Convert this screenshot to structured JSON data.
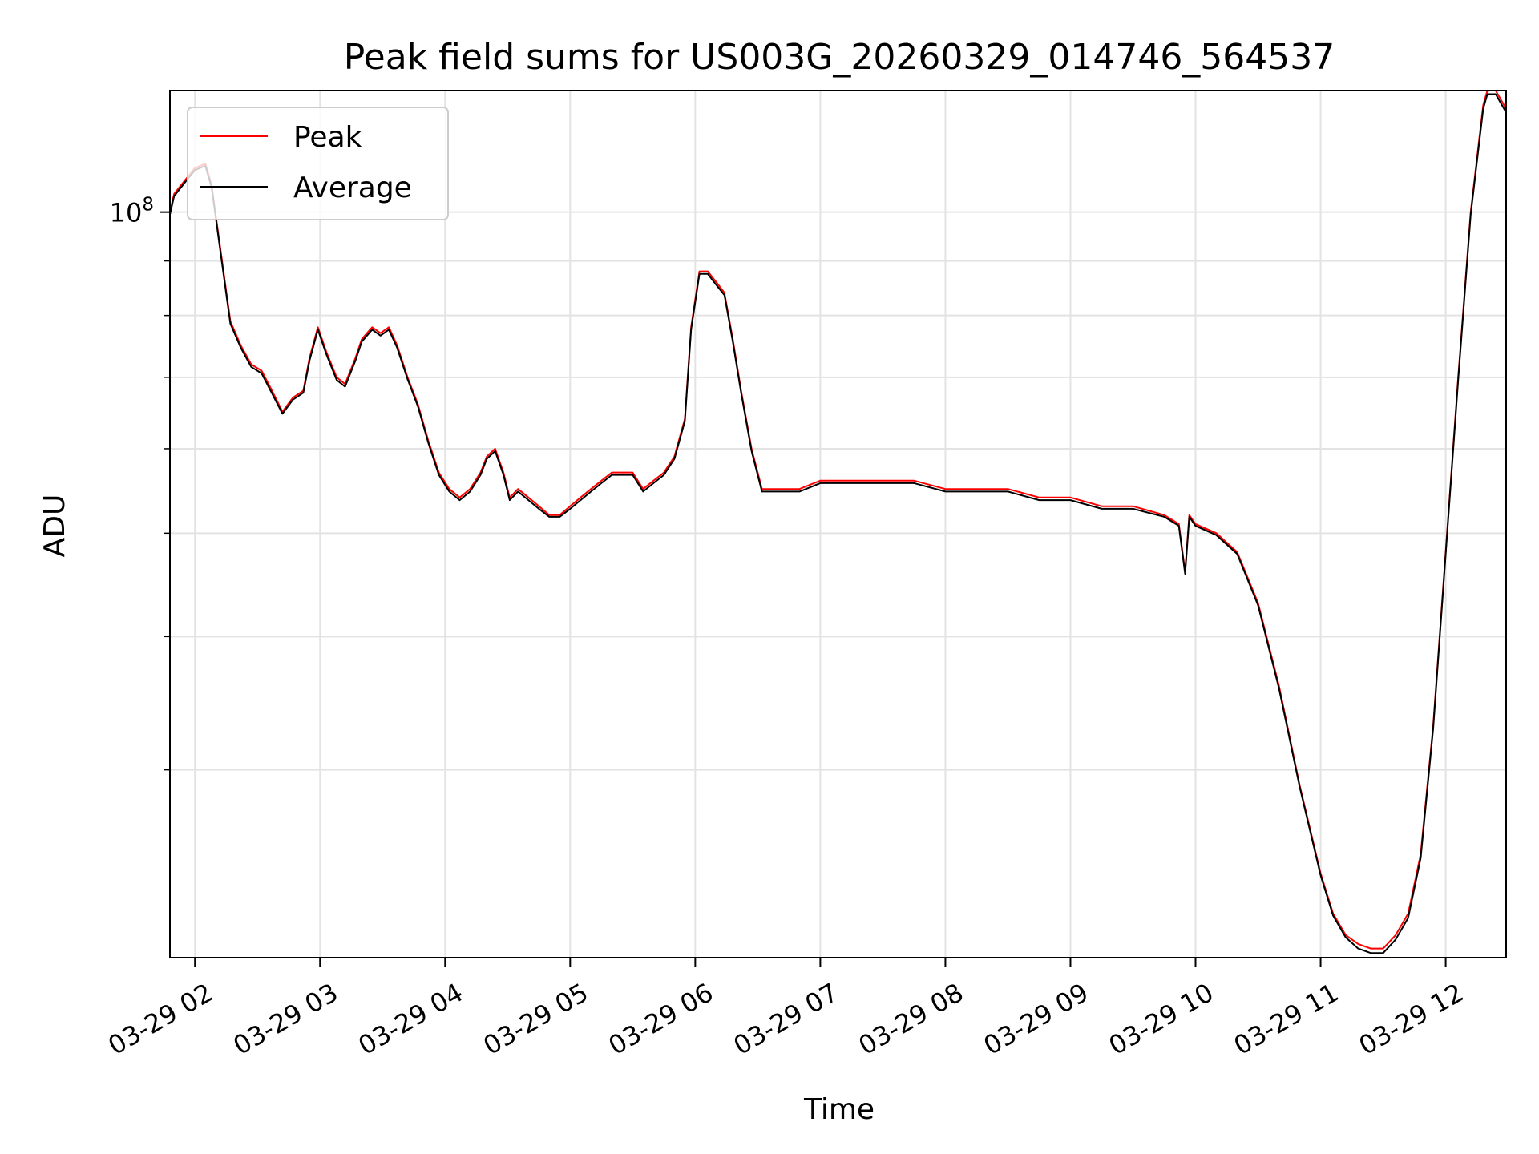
{
  "chart_data": {
    "type": "line",
    "title": "Peak field sums for US003G_20260329_014746_564537",
    "xlabel": "Time",
    "ylabel": "ADU",
    "yscale": "log",
    "ylim": [
      20000000,
      130000000
    ],
    "xlim": [
      "03-29 01:48",
      "03-29 12:29"
    ],
    "grid": true,
    "legend_position": "top-left",
    "x_ticks": [
      "03-29 02",
      "03-29 03",
      "03-29 04",
      "03-29 05",
      "03-29 06",
      "03-29 07",
      "03-29 08",
      "03-29 09",
      "03-29 10",
      "03-29 11",
      "03-29 12"
    ],
    "y_ticks": [
      {
        "value": 100000000,
        "label": "10",
        "exponent": "8"
      }
    ],
    "y_minor_ticks": [
      30000000,
      40000000,
      50000000,
      60000000,
      70000000,
      80000000,
      90000000
    ],
    "series": [
      {
        "name": "Peak",
        "color": "#ff0000",
        "x": [
          "03-29 01:48",
          "03-29 01:50",
          "03-29 01:55",
          "03-29 02:00",
          "03-29 02:05",
          "03-29 02:08",
          "03-29 02:12",
          "03-29 02:17",
          "03-29 02:22",
          "03-29 02:27",
          "03-29 02:32",
          "03-29 02:37",
          "03-29 02:42",
          "03-29 02:47",
          "03-29 02:52",
          "03-29 02:55",
          "03-29 02:59",
          "03-29 03:03",
          "03-29 03:08",
          "03-29 03:12",
          "03-29 03:17",
          "03-29 03:20",
          "03-29 03:25",
          "03-29 03:29",
          "03-29 03:33",
          "03-29 03:37",
          "03-29 03:42",
          "03-29 03:47",
          "03-29 03:52",
          "03-29 03:57",
          "03-29 04:02",
          "03-29 04:07",
          "03-29 04:12",
          "03-29 04:17",
          "03-29 04:20",
          "03-29 04:24",
          "03-29 04:28",
          "03-29 04:31",
          "03-29 04:35",
          "03-29 04:40",
          "03-29 04:45",
          "03-29 04:50",
          "03-29 04:55",
          "03-29 05:00",
          "03-29 05:05",
          "03-29 05:10",
          "03-29 05:15",
          "03-29 05:20",
          "03-29 05:25",
          "03-29 05:30",
          "03-29 05:35",
          "03-29 05:40",
          "03-29 05:45",
          "03-29 05:50",
          "03-29 05:55",
          "03-29 05:58",
          "03-29 06:02",
          "03-29 06:06",
          "03-29 06:10",
          "03-29 06:14",
          "03-29 06:18",
          "03-29 06:22",
          "03-29 06:27",
          "03-29 06:32",
          "03-29 06:40",
          "03-29 06:50",
          "03-29 07:00",
          "03-29 07:15",
          "03-29 07:30",
          "03-29 07:45",
          "03-29 08:00",
          "03-29 08:15",
          "03-29 08:30",
          "03-29 08:45",
          "03-29 09:00",
          "03-29 09:15",
          "03-29 09:30",
          "03-29 09:45",
          "03-29 09:52",
          "03-29 09:55",
          "03-29 09:57",
          "03-29 10:00",
          "03-29 10:10",
          "03-29 10:20",
          "03-29 10:30",
          "03-29 10:40",
          "03-29 10:50",
          "03-29 11:00",
          "03-29 11:06",
          "03-29 11:12",
          "03-29 11:18",
          "03-29 11:24",
          "03-29 11:30",
          "03-29 11:36",
          "03-29 11:42",
          "03-29 11:48",
          "03-29 11:54",
          "03-29 12:00",
          "03-29 12:06",
          "03-29 12:12",
          "03-29 12:18",
          "03-29 12:20",
          "03-29 12:24",
          "03-29 12:29"
        ],
        "values": [
          100000000,
          104000000,
          107000000,
          110000000,
          111000000,
          106000000,
          93000000,
          79000000,
          75000000,
          72000000,
          71000000,
          68000000,
          65000000,
          67000000,
          68000000,
          73000000,
          78000000,
          74000000,
          70000000,
          69000000,
          73000000,
          76000000,
          78000000,
          77000000,
          78000000,
          75000000,
          70000000,
          66000000,
          61000000,
          57000000,
          55000000,
          54000000,
          55000000,
          57000000,
          59000000,
          60000000,
          57000000,
          54000000,
          55000000,
          54000000,
          53000000,
          52000000,
          52000000,
          53000000,
          54000000,
          55000000,
          56000000,
          57000000,
          57000000,
          57000000,
          55000000,
          56000000,
          57000000,
          59000000,
          64000000,
          78000000,
          88000000,
          88000000,
          86000000,
          84000000,
          76000000,
          68000000,
          60000000,
          55000000,
          55000000,
          55000000,
          56000000,
          56000000,
          56000000,
          56000000,
          55000000,
          55000000,
          55000000,
          54000000,
          54000000,
          53000000,
          53000000,
          52000000,
          51000000,
          46000000,
          52000000,
          51000000,
          50000000,
          48000000,
          43000000,
          36000000,
          29000000,
          24000000,
          22000000,
          21000000,
          20600000,
          20400000,
          20400000,
          21000000,
          22000000,
          25000000,
          33000000,
          48000000,
          70000000,
          100000000,
          126000000,
          130000000,
          130000000,
          125000000
        ]
      },
      {
        "name": "Average",
        "color": "#000000",
        "x": [
          "03-29 01:48",
          "03-29 01:50",
          "03-29 01:55",
          "03-29 02:00",
          "03-29 02:05",
          "03-29 02:08",
          "03-29 02:12",
          "03-29 02:17",
          "03-29 02:22",
          "03-29 02:27",
          "03-29 02:32",
          "03-29 02:37",
          "03-29 02:42",
          "03-29 02:47",
          "03-29 02:52",
          "03-29 02:55",
          "03-29 02:59",
          "03-29 03:03",
          "03-29 03:08",
          "03-29 03:12",
          "03-29 03:17",
          "03-29 03:20",
          "03-29 03:25",
          "03-29 03:29",
          "03-29 03:33",
          "03-29 03:37",
          "03-29 03:42",
          "03-29 03:47",
          "03-29 03:52",
          "03-29 03:57",
          "03-29 04:02",
          "03-29 04:07",
          "03-29 04:12",
          "03-29 04:17",
          "03-29 04:20",
          "03-29 04:24",
          "03-29 04:28",
          "03-29 04:31",
          "03-29 04:35",
          "03-29 04:40",
          "03-29 04:45",
          "03-29 04:50",
          "03-29 04:55",
          "03-29 05:00",
          "03-29 05:05",
          "03-29 05:10",
          "03-29 05:15",
          "03-29 05:20",
          "03-29 05:25",
          "03-29 05:30",
          "03-29 05:35",
          "03-29 05:40",
          "03-29 05:45",
          "03-29 05:50",
          "03-29 05:55",
          "03-29 05:58",
          "03-29 06:02",
          "03-29 06:06",
          "03-29 06:10",
          "03-29 06:14",
          "03-29 06:18",
          "03-29 06:22",
          "03-29 06:27",
          "03-29 06:32",
          "03-29 06:40",
          "03-29 06:50",
          "03-29 07:00",
          "03-29 07:15",
          "03-29 07:30",
          "03-29 07:45",
          "03-29 08:00",
          "03-29 08:15",
          "03-29 08:30",
          "03-29 08:45",
          "03-29 09:00",
          "03-29 09:15",
          "03-29 09:30",
          "03-29 09:45",
          "03-29 09:52",
          "03-29 09:55",
          "03-29 09:57",
          "03-29 10:00",
          "03-29 10:10",
          "03-29 10:20",
          "03-29 10:30",
          "03-29 10:40",
          "03-29 10:50",
          "03-29 11:00",
          "03-29 11:06",
          "03-29 11:12",
          "03-29 11:18",
          "03-29 11:24",
          "03-29 11:30",
          "03-29 11:36",
          "03-29 11:42",
          "03-29 11:48",
          "03-29 11:54",
          "03-29 12:00",
          "03-29 12:06",
          "03-29 12:12",
          "03-29 12:18",
          "03-29 12:20",
          "03-29 12:24",
          "03-29 12:29"
        ],
        "values": [
          99500000,
          103500000,
          106500000,
          109500000,
          110500000,
          105500000,
          92500000,
          78600000,
          74600000,
          71600000,
          70600000,
          67600000,
          64700000,
          66700000,
          67700000,
          72600000,
          77600000,
          73600000,
          69600000,
          68600000,
          72600000,
          75600000,
          77600000,
          76600000,
          77600000,
          74600000,
          69700000,
          65700000,
          60700000,
          56700000,
          54700000,
          53700000,
          54700000,
          56700000,
          58700000,
          59700000,
          56700000,
          53700000,
          54700000,
          53700000,
          52700000,
          51800000,
          51800000,
          52700000,
          53700000,
          54700000,
          55700000,
          56700000,
          56700000,
          56700000,
          54700000,
          55700000,
          56700000,
          58700000,
          63700000,
          77600000,
          87500000,
          87500000,
          85500000,
          83600000,
          75600000,
          67700000,
          59700000,
          54700000,
          54700000,
          54700000,
          55700000,
          55700000,
          55700000,
          55700000,
          54700000,
          54700000,
          54700000,
          53700000,
          53700000,
          52700000,
          52700000,
          51800000,
          50800000,
          45800000,
          51800000,
          50800000,
          49800000,
          47800000,
          42800000,
          35800000,
          28900000,
          23900000,
          21900000,
          20900000,
          20400000,
          20200000,
          20200000,
          20800000,
          21800000,
          24800000,
          32800000,
          47800000,
          69600000,
          99500000,
          125000000,
          129000000,
          129000000,
          124000000
        ]
      }
    ]
  }
}
